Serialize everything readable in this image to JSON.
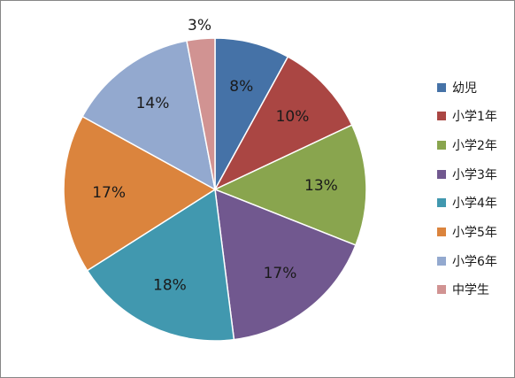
{
  "chart_data": {
    "type": "pie",
    "title": "",
    "legend_position": "right",
    "slices": [
      {
        "label": "幼児",
        "value": 8,
        "value_label": "8%",
        "color": "#4572A7"
      },
      {
        "label": "小学1年",
        "value": 10,
        "value_label": "10%",
        "color": "#AA4643"
      },
      {
        "label": "小学2年",
        "value": 13,
        "value_label": "13%",
        "color": "#89A54E"
      },
      {
        "label": "小学3年",
        "value": 17,
        "value_label": "17%",
        "color": "#71588F"
      },
      {
        "label": "小学4年",
        "value": 18,
        "value_label": "18%",
        "color": "#4198AF"
      },
      {
        "label": "小学5年",
        "value": 17,
        "value_label": "17%",
        "color": "#DB843D"
      },
      {
        "label": "小学6年",
        "value": 14,
        "value_label": "14%",
        "color": "#93A9CF"
      },
      {
        "label": "中学生",
        "value": 3,
        "value_label": "3%",
        "color": "#D19392"
      }
    ]
  }
}
